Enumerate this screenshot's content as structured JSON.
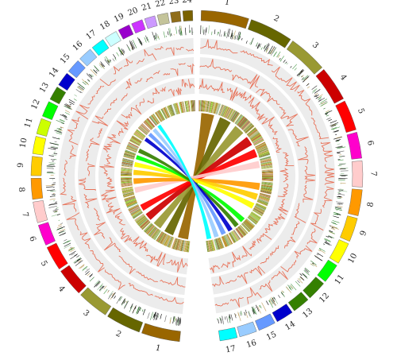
{
  "chart_data": {
    "type": "circos",
    "title": "",
    "left_genome": {
      "chromosomes": [
        {
          "label": "1",
          "color": "#996600"
        },
        {
          "label": "2",
          "color": "#666600"
        },
        {
          "label": "3",
          "color": "#999933"
        },
        {
          "label": "4",
          "color": "#cc0000"
        },
        {
          "label": "5",
          "color": "#ff0000"
        },
        {
          "label": "6",
          "color": "#ff00cc"
        },
        {
          "label": "7",
          "color": "#ffcccc"
        },
        {
          "label": "8",
          "color": "#ff9900"
        },
        {
          "label": "9",
          "color": "#ffcc00"
        },
        {
          "label": "10",
          "color": "#ffff00"
        },
        {
          "label": "11",
          "color": "#ccff00"
        },
        {
          "label": "12",
          "color": "#00ff00"
        },
        {
          "label": "13",
          "color": "#358000"
        },
        {
          "label": "14",
          "color": "#0000cc"
        },
        {
          "label": "15",
          "color": "#6699ff"
        },
        {
          "label": "16",
          "color": "#99ccff"
        },
        {
          "label": "17",
          "color": "#00ffff"
        },
        {
          "label": "18",
          "color": "#ccffff"
        },
        {
          "label": "19",
          "color": "#9900cc"
        },
        {
          "label": "20",
          "color": "#cc33ff"
        },
        {
          "label": "21",
          "color": "#cc99ff"
        },
        {
          "label": "22",
          "color": "#c4c49a"
        },
        {
          "label": "23",
          "color": "#8f6d1a"
        },
        {
          "label": "24",
          "color": "#7a6200"
        }
      ]
    },
    "right_genome": {
      "chromosomes": [
        {
          "label": "1",
          "color": "#996600"
        },
        {
          "label": "2",
          "color": "#666600"
        },
        {
          "label": "3",
          "color": "#999933"
        },
        {
          "label": "4",
          "color": "#cc0000"
        },
        {
          "label": "5",
          "color": "#ff0000"
        },
        {
          "label": "6",
          "color": "#ff00cc"
        },
        {
          "label": "7",
          "color": "#ffcccc"
        },
        {
          "label": "8",
          "color": "#ff9900"
        },
        {
          "label": "9",
          "color": "#ffcc00"
        },
        {
          "label": "10",
          "color": "#ffff00"
        },
        {
          "label": "11",
          "color": "#00ff00"
        },
        {
          "label": "12",
          "color": "#358000"
        },
        {
          "label": "13",
          "color": "#358000"
        },
        {
          "label": "14",
          "color": "#0000cc"
        },
        {
          "label": "15",
          "color": "#6699ff"
        },
        {
          "label": "16",
          "color": "#99ccff"
        },
        {
          "label": "17",
          "color": "#00ffff"
        }
      ]
    },
    "track_colors": {
      "line": "#e8735a",
      "ring_bg": "#ececec",
      "heat_palette": [
        "#6b8e23",
        "#9acd32",
        "#d2b48c",
        "#c8a050",
        "#8fbc8f",
        "#b8860b",
        "#a0522d"
      ]
    },
    "links": [
      {
        "from": 1,
        "to": 1,
        "color": "#996600"
      },
      {
        "from": 2,
        "to": 2,
        "color": "#666600"
      },
      {
        "from": 3,
        "to": 3,
        "color": "#999933"
      },
      {
        "from": 4,
        "to": 4,
        "color": "#cc0000"
      },
      {
        "from": 5,
        "to": 5,
        "color": "#ff0000"
      },
      {
        "from": 6,
        "to": 7,
        "color": "#ffcccc"
      },
      {
        "from": 8,
        "to": 8,
        "color": "#ff9900"
      },
      {
        "from": 9,
        "to": 9,
        "color": "#ffcc00"
      },
      {
        "from": 10,
        "to": 10,
        "color": "#ffff00"
      },
      {
        "from": 12,
        "to": 11,
        "color": "#00ff00"
      },
      {
        "from": 13,
        "to": 12,
        "color": "#358000"
      },
      {
        "from": 14,
        "to": 14,
        "color": "#0000cc"
      },
      {
        "from": 15,
        "to": 15,
        "color": "#6699ff"
      },
      {
        "from": 16,
        "to": 16,
        "color": "#99ccff"
      },
      {
        "from": 17,
        "to": 17,
        "color": "#00ffff"
      }
    ]
  }
}
